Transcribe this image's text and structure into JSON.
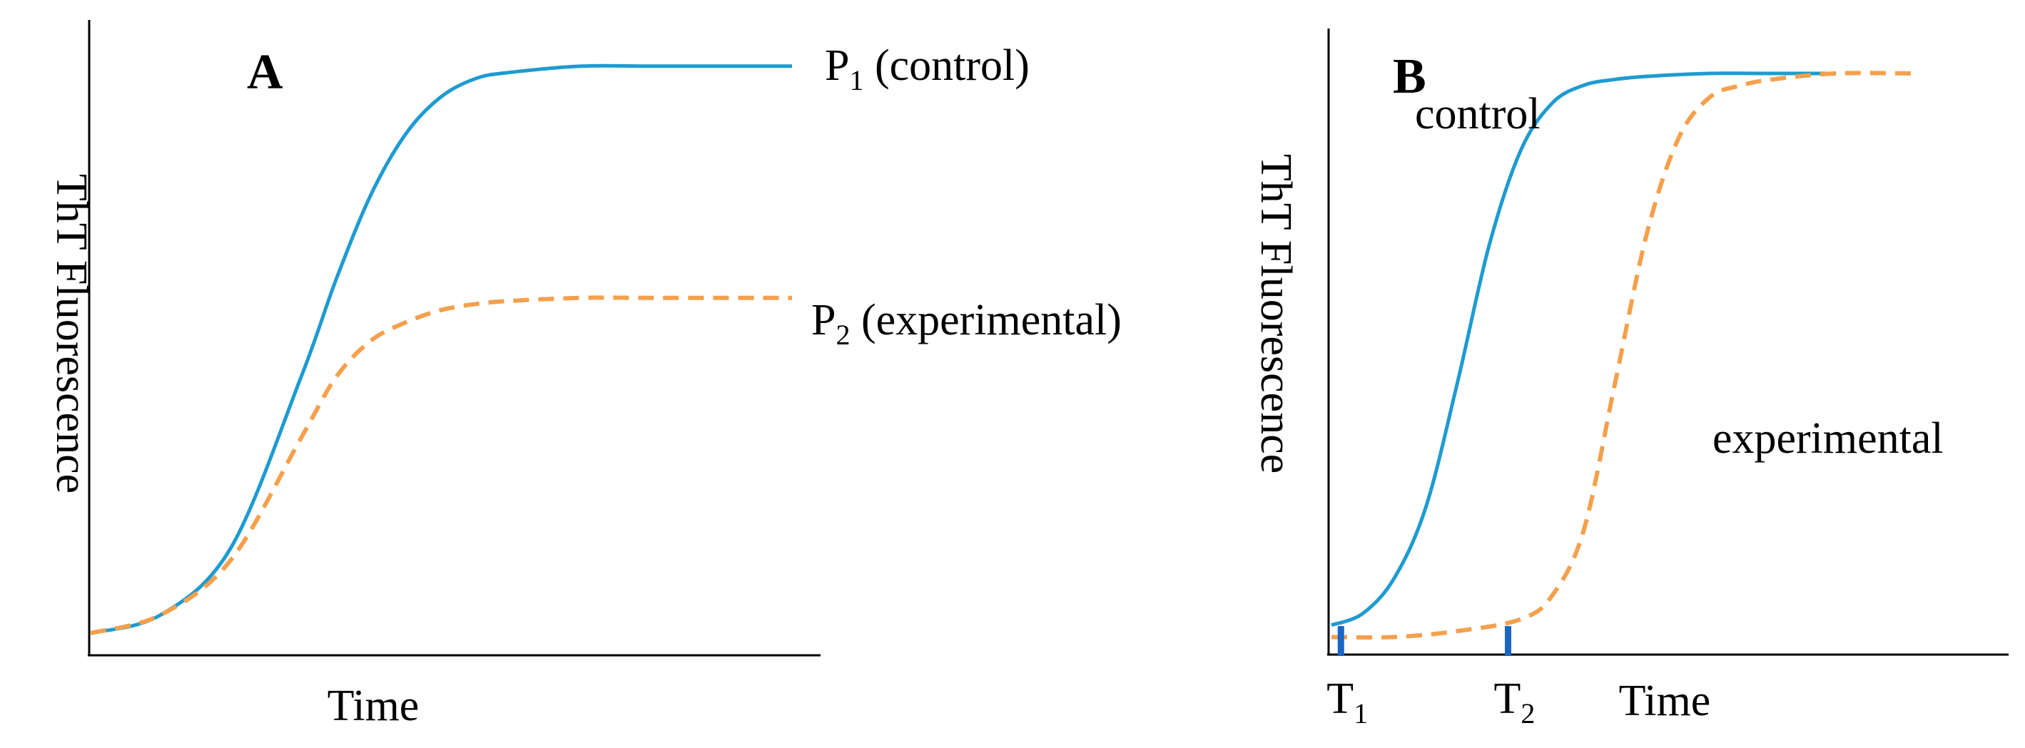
{
  "colors": {
    "control": "#1e9bd1",
    "experimental": "#f4a04c",
    "marker": "#1a66c6",
    "axis": "#000000"
  },
  "chart_data": [
    {
      "type": "line",
      "panel": "A",
      "xlabel": "Time",
      "ylabel": "ThT Fluorescence",
      "xlim": [
        0,
        10
      ],
      "ylim": [
        0,
        1
      ],
      "grid": false,
      "series": [
        {
          "name": "control",
          "label_prefix": "P",
          "label_sub": "1",
          "label_rest": " (control)",
          "style": "solid",
          "x": [
            0,
            1,
            2,
            3,
            3.5,
            4,
            4.5,
            5,
            5.5,
            6,
            7,
            8,
            10
          ],
          "y": [
            0.02,
            0.05,
            0.16,
            0.44,
            0.6,
            0.74,
            0.84,
            0.9,
            0.93,
            0.94,
            0.95,
            0.95,
            0.95
          ]
        },
        {
          "name": "experimental",
          "label_prefix": "P",
          "label_sub": "2",
          "label_rest": " (experimental)",
          "style": "dashed",
          "x": [
            0,
            1,
            2,
            3,
            3.5,
            4,
            4.5,
            5,
            5.5,
            6,
            7,
            8,
            10
          ],
          "y": [
            0.02,
            0.05,
            0.14,
            0.34,
            0.44,
            0.5,
            0.53,
            0.55,
            0.56,
            0.565,
            0.57,
            0.57,
            0.57
          ]
        }
      ]
    },
    {
      "type": "line",
      "panel": "B",
      "xlabel": "Time",
      "ylabel": "ThT Fluorescence",
      "xlim": [
        0,
        10
      ],
      "ylim": [
        0,
        1
      ],
      "grid": false,
      "series": [
        {
          "name": "control",
          "label_text": "control",
          "style": "solid",
          "x": [
            0,
            0.5,
            1,
            1.5,
            2,
            2.5,
            3,
            3.5,
            4,
            4.5,
            5,
            6,
            7,
            8
          ],
          "y": [
            0.04,
            0.06,
            0.12,
            0.24,
            0.45,
            0.68,
            0.84,
            0.92,
            0.95,
            0.96,
            0.965,
            0.97,
            0.97,
            0.97
          ]
        },
        {
          "name": "experimental",
          "label_text": "experimental",
          "style": "dashed",
          "x": [
            0,
            1,
            2,
            3,
            3.5,
            4,
            4.5,
            5,
            5.5,
            6,
            6.5,
            7,
            8,
            9.2
          ],
          "y": [
            0.02,
            0.02,
            0.03,
            0.05,
            0.09,
            0.2,
            0.45,
            0.7,
            0.86,
            0.93,
            0.95,
            0.96,
            0.97,
            0.97
          ]
        }
      ],
      "markers": [
        {
          "x": 0.15,
          "label": "T",
          "sub": "1"
        },
        {
          "x": 2.8,
          "label": "T",
          "sub": "2"
        }
      ]
    }
  ]
}
